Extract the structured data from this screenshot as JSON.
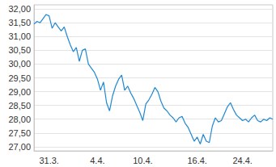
{
  "chart_data": {
    "type": "line",
    "categories": [
      null,
      null,
      null,
      null,
      null,
      "31.3.",
      null,
      null,
      null,
      null,
      null,
      null,
      null,
      null,
      null,
      null,
      null,
      null,
      null,
      null,
      null,
      "4.4.",
      null,
      null,
      null,
      null,
      null,
      null,
      null,
      null,
      null,
      null,
      null,
      null,
      null,
      null,
      "10.4.",
      null,
      null,
      null,
      null,
      null,
      null,
      null,
      null,
      null,
      null,
      null,
      null,
      null,
      null,
      null,
      null,
      null,
      "16.4.",
      null,
      null,
      null,
      null,
      null,
      null,
      null,
      null,
      null,
      null,
      null,
      null,
      null,
      null,
      "24.4.",
      null,
      null,
      null,
      null,
      null,
      null,
      null,
      null,
      null,
      null
    ],
    "values": [
      31.45,
      31.55,
      31.5,
      31.65,
      31.8,
      31.75,
      31.3,
      31.5,
      31.35,
      31.2,
      31.35,
      31.0,
      30.7,
      30.45,
      30.6,
      30.1,
      30.5,
      30.55,
      30.0,
      29.85,
      29.7,
      29.45,
      29.05,
      29.35,
      28.6,
      28.3,
      28.85,
      29.2,
      29.45,
      29.6,
      29.05,
      29.2,
      28.95,
      28.75,
      28.5,
      28.25,
      27.95,
      28.55,
      28.7,
      28.9,
      29.15,
      29.0,
      28.65,
      28.4,
      28.3,
      28.15,
      28.05,
      27.9,
      28.05,
      28.1,
      27.85,
      27.7,
      27.45,
      27.2,
      27.35,
      27.1,
      27.45,
      27.2,
      27.15,
      27.75,
      28.05,
      27.9,
      27.95,
      28.2,
      28.45,
      28.6,
      28.35,
      28.15,
      28.05,
      27.95,
      28.0,
      27.9,
      28.05,
      28.15,
      27.95,
      27.9,
      28.0,
      27.95,
      28.05,
      28.0
    ],
    "color": "#1e88d2",
    "ylim": [
      26.85,
      32.15
    ],
    "yticks": [
      {
        "value": 27,
        "label": "27,00"
      },
      {
        "value": 27.5,
        "label": "27,50"
      },
      {
        "value": 28,
        "label": "28,00"
      },
      {
        "value": 28.5,
        "label": "28,50"
      },
      {
        "value": 29,
        "label": "29,00"
      },
      {
        "value": 29.5,
        "label": "29,50"
      },
      {
        "value": 30,
        "label": "30,00"
      },
      {
        "value": 30.5,
        "label": "30,50"
      },
      {
        "value": 31,
        "label": "31,00"
      },
      {
        "value": 31.5,
        "label": "31,50"
      },
      {
        "value": 32,
        "label": "32,00"
      }
    ],
    "grid": true
  }
}
